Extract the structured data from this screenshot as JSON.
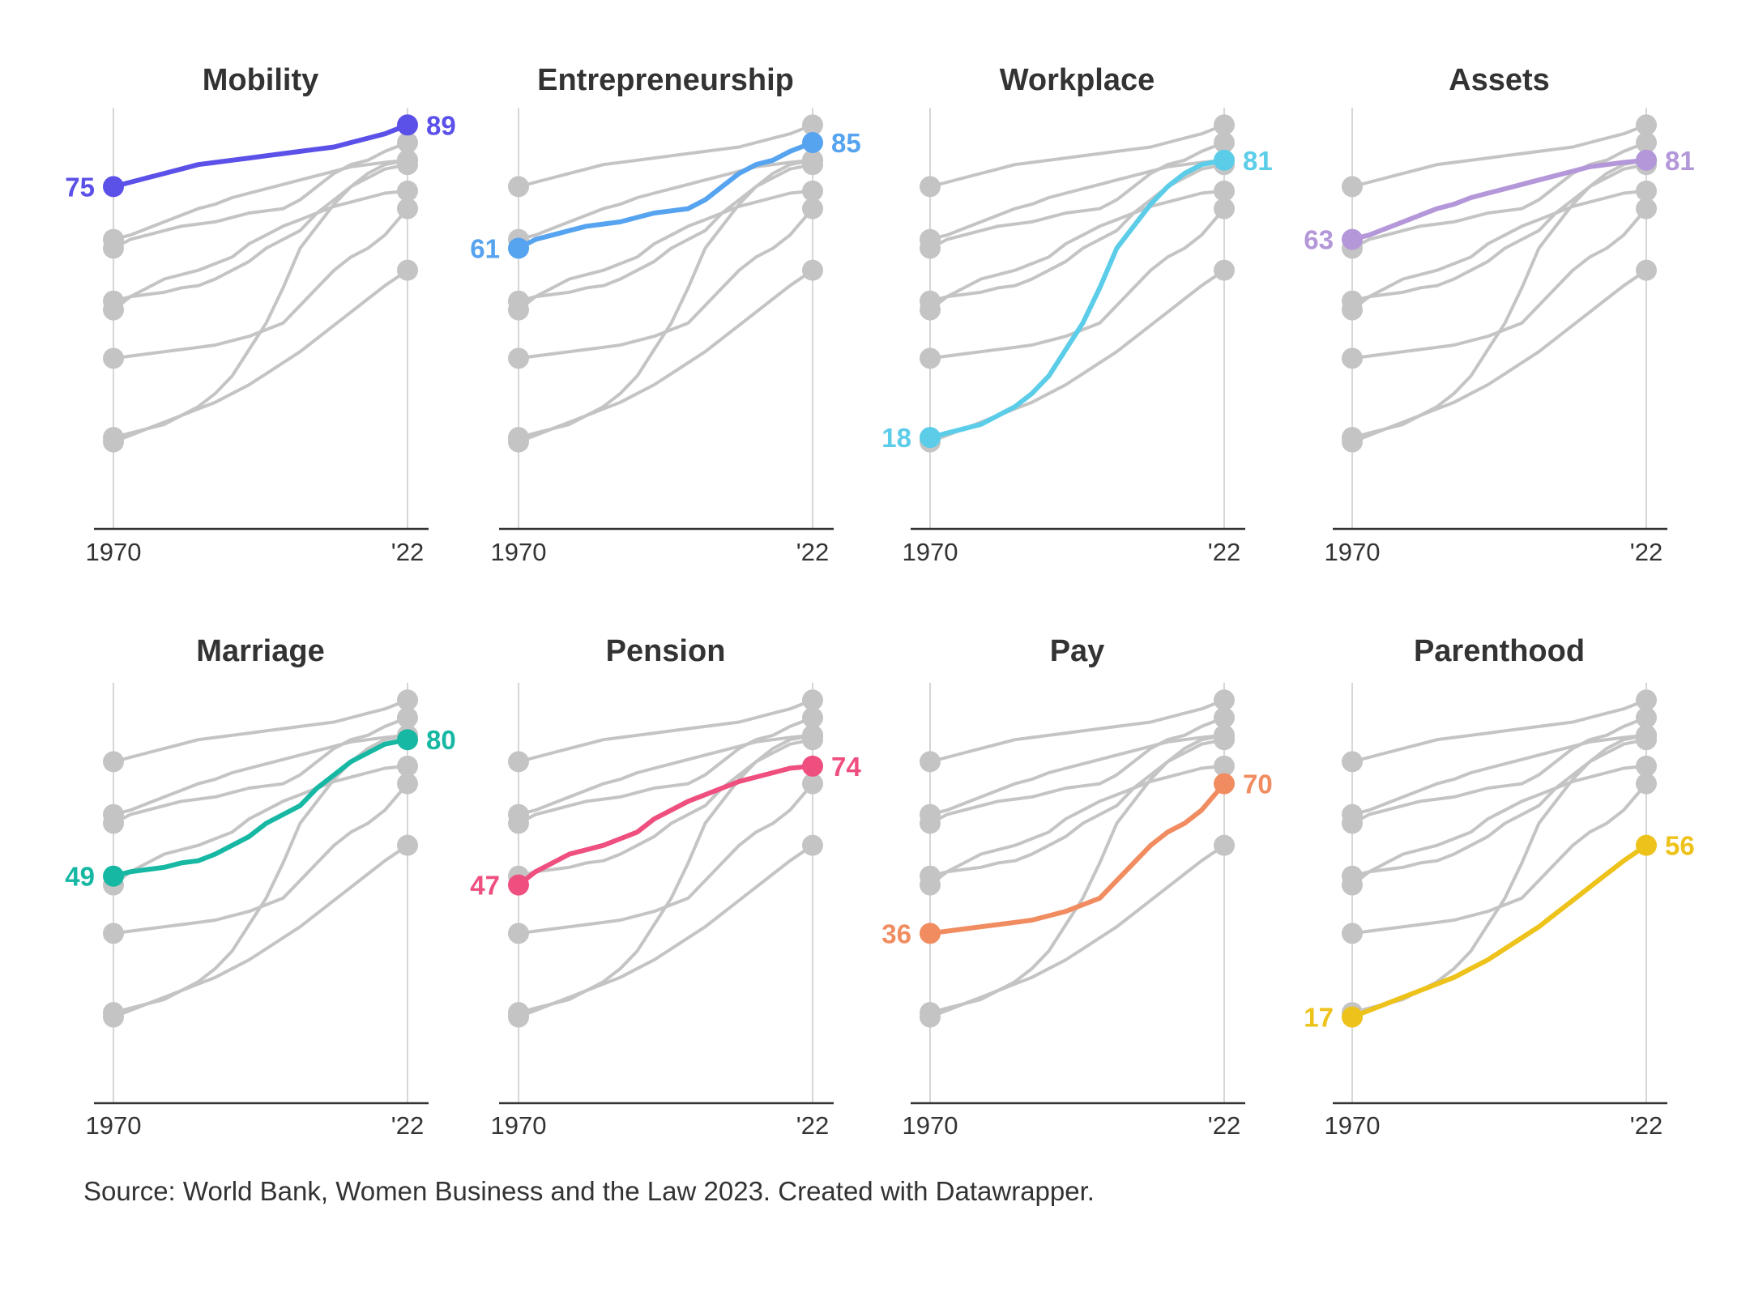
{
  "source": "Source: World Bank, Women Business and the Law 2023. Created with Datawrapper.",
  "chart_data": {
    "type": "line",
    "x_range": [
      1970,
      2022
    ],
    "x_ticks": [
      "1970",
      "'22"
    ],
    "ylim": [
      0,
      100
    ],
    "grid": false,
    "series_colors": {
      "Mobility": "#5b50e8",
      "Entrepreneurship": "#56a3f0",
      "Workplace": "#5ccde8",
      "Assets": "#b497d9",
      "Marriage": "#17b8a3",
      "Pension": "#ef4f7f",
      "Pay": "#f08c60",
      "Parenthood": "#edc21a"
    },
    "background_color": "#c4c4c4",
    "series": [
      {
        "name": "Mobility",
        "start_label": "75",
        "end_label": "89",
        "points": [
          [
            1970,
            75
          ],
          [
            1973,
            76
          ],
          [
            1976,
            77
          ],
          [
            1979,
            78
          ],
          [
            1982,
            79
          ],
          [
            1985,
            80
          ],
          [
            1988,
            80.5
          ],
          [
            1991,
            81
          ],
          [
            1994,
            81.5
          ],
          [
            1997,
            82
          ],
          [
            2000,
            82.5
          ],
          [
            2003,
            83
          ],
          [
            2006,
            83.5
          ],
          [
            2009,
            84
          ],
          [
            2012,
            85
          ],
          [
            2015,
            86
          ],
          [
            2018,
            87
          ],
          [
            2022,
            89
          ]
        ]
      },
      {
        "name": "Entrepreneurship",
        "start_label": "61",
        "end_label": "85",
        "points": [
          [
            1970,
            61
          ],
          [
            1973,
            63
          ],
          [
            1976,
            64
          ],
          [
            1979,
            65
          ],
          [
            1982,
            66
          ],
          [
            1985,
            66.5
          ],
          [
            1988,
            67
          ],
          [
            1991,
            68
          ],
          [
            1994,
            69
          ],
          [
            1997,
            69.5
          ],
          [
            2000,
            70
          ],
          [
            2003,
            72
          ],
          [
            2006,
            75
          ],
          [
            2009,
            78
          ],
          [
            2012,
            80
          ],
          [
            2015,
            81
          ],
          [
            2018,
            83
          ],
          [
            2022,
            85
          ]
        ]
      },
      {
        "name": "Workplace",
        "start_label": "18",
        "end_label": "81",
        "points": [
          [
            1970,
            18
          ],
          [
            1973,
            19
          ],
          [
            1976,
            20
          ],
          [
            1979,
            21
          ],
          [
            1982,
            23
          ],
          [
            1985,
            25
          ],
          [
            1988,
            28
          ],
          [
            1991,
            32
          ],
          [
            1994,
            38
          ],
          [
            1997,
            44
          ],
          [
            2000,
            52
          ],
          [
            2003,
            61
          ],
          [
            2006,
            66
          ],
          [
            2009,
            71
          ],
          [
            2012,
            75
          ],
          [
            2015,
            78
          ],
          [
            2018,
            80
          ],
          [
            2022,
            81
          ]
        ]
      },
      {
        "name": "Assets",
        "start_label": "63",
        "end_label": "81",
        "points": [
          [
            1970,
            63
          ],
          [
            1973,
            64
          ],
          [
            1976,
            65.5
          ],
          [
            1979,
            67
          ],
          [
            1982,
            68.5
          ],
          [
            1985,
            70
          ],
          [
            1988,
            71
          ],
          [
            1991,
            72.5
          ],
          [
            1994,
            73.5
          ],
          [
            1997,
            74.5
          ],
          [
            2000,
            75.5
          ],
          [
            2003,
            76.5
          ],
          [
            2006,
            77.5
          ],
          [
            2009,
            78.5
          ],
          [
            2012,
            79.5
          ],
          [
            2015,
            80
          ],
          [
            2018,
            80.5
          ],
          [
            2022,
            81
          ]
        ]
      },
      {
        "name": "Marriage",
        "start_label": "49",
        "end_label": "80",
        "points": [
          [
            1970,
            49
          ],
          [
            1973,
            50
          ],
          [
            1976,
            50.5
          ],
          [
            1979,
            51
          ],
          [
            1982,
            52
          ],
          [
            1985,
            52.5
          ],
          [
            1988,
            54
          ],
          [
            1991,
            56
          ],
          [
            1994,
            58
          ],
          [
            1997,
            61
          ],
          [
            2000,
            63
          ],
          [
            2003,
            65
          ],
          [
            2006,
            69
          ],
          [
            2009,
            72
          ],
          [
            2012,
            75
          ],
          [
            2015,
            77
          ],
          [
            2018,
            79
          ],
          [
            2022,
            80
          ]
        ]
      },
      {
        "name": "Pension",
        "start_label": "47",
        "end_label": "74",
        "points": [
          [
            1970,
            47
          ],
          [
            1973,
            50
          ],
          [
            1976,
            52
          ],
          [
            1979,
            54
          ],
          [
            1982,
            55
          ],
          [
            1985,
            56
          ],
          [
            1988,
            57.5
          ],
          [
            1991,
            59
          ],
          [
            1994,
            62
          ],
          [
            1997,
            64
          ],
          [
            2000,
            66
          ],
          [
            2003,
            67.5
          ],
          [
            2006,
            69
          ],
          [
            2009,
            70.5
          ],
          [
            2012,
            71.5
          ],
          [
            2015,
            72.5
          ],
          [
            2018,
            73.5
          ],
          [
            2022,
            74
          ]
        ]
      },
      {
        "name": "Pay",
        "start_label": "36",
        "end_label": "70",
        "points": [
          [
            1970,
            36
          ],
          [
            1973,
            36.5
          ],
          [
            1976,
            37
          ],
          [
            1979,
            37.5
          ],
          [
            1982,
            38
          ],
          [
            1985,
            38.5
          ],
          [
            1988,
            39
          ],
          [
            1991,
            40
          ],
          [
            1994,
            41
          ],
          [
            1997,
            42.5
          ],
          [
            2000,
            44
          ],
          [
            2003,
            48
          ],
          [
            2006,
            52
          ],
          [
            2009,
            56
          ],
          [
            2012,
            59
          ],
          [
            2015,
            61
          ],
          [
            2018,
            64
          ],
          [
            2022,
            70
          ]
        ]
      },
      {
        "name": "Parenthood",
        "start_label": "17",
        "end_label": "56",
        "points": [
          [
            1970,
            17
          ],
          [
            1973,
            18.5
          ],
          [
            1976,
            20
          ],
          [
            1979,
            21.5
          ],
          [
            1982,
            23
          ],
          [
            1985,
            24.5
          ],
          [
            1988,
            26
          ],
          [
            1991,
            28
          ],
          [
            1994,
            30
          ],
          [
            1997,
            32.5
          ],
          [
            2000,
            35
          ],
          [
            2003,
            37.5
          ],
          [
            2006,
            40.5
          ],
          [
            2009,
            43.5
          ],
          [
            2012,
            46.5
          ],
          [
            2015,
            49.5
          ],
          [
            2018,
            52.5
          ],
          [
            2022,
            56
          ]
        ]
      }
    ]
  }
}
